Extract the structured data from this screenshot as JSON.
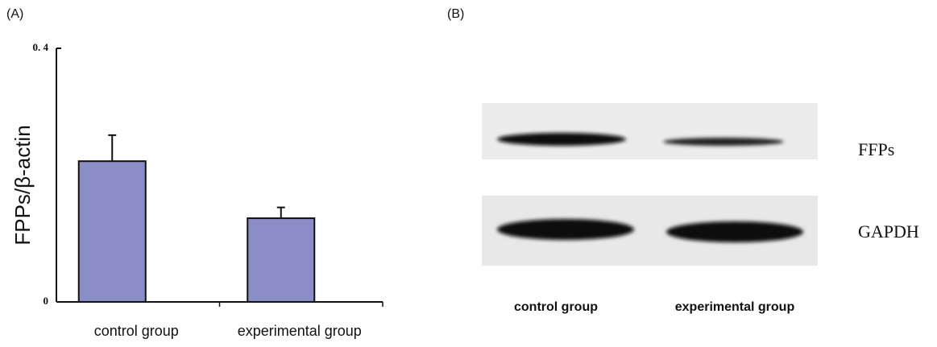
{
  "panel_labels": [
    "(A)",
    "(B)"
  ],
  "chart_data": {
    "type": "bar",
    "y_label": "FPPs/β-actin",
    "categories": [
      "control group",
      "experimental group"
    ],
    "values": [
      0.222,
      0.132
    ],
    "errors": [
      0.041,
      0.017
    ],
    "color": "#8a8dc6",
    "ylim": [
      0,
      0.4
    ],
    "yticks": [
      0,
      {
        "value": 0.4,
        "label": "0. 4"
      }
    ]
  },
  "blot": {
    "bands": [
      "FFPs",
      "GAPDH"
    ],
    "lanes": [
      "control group",
      "experimental group"
    ]
  }
}
